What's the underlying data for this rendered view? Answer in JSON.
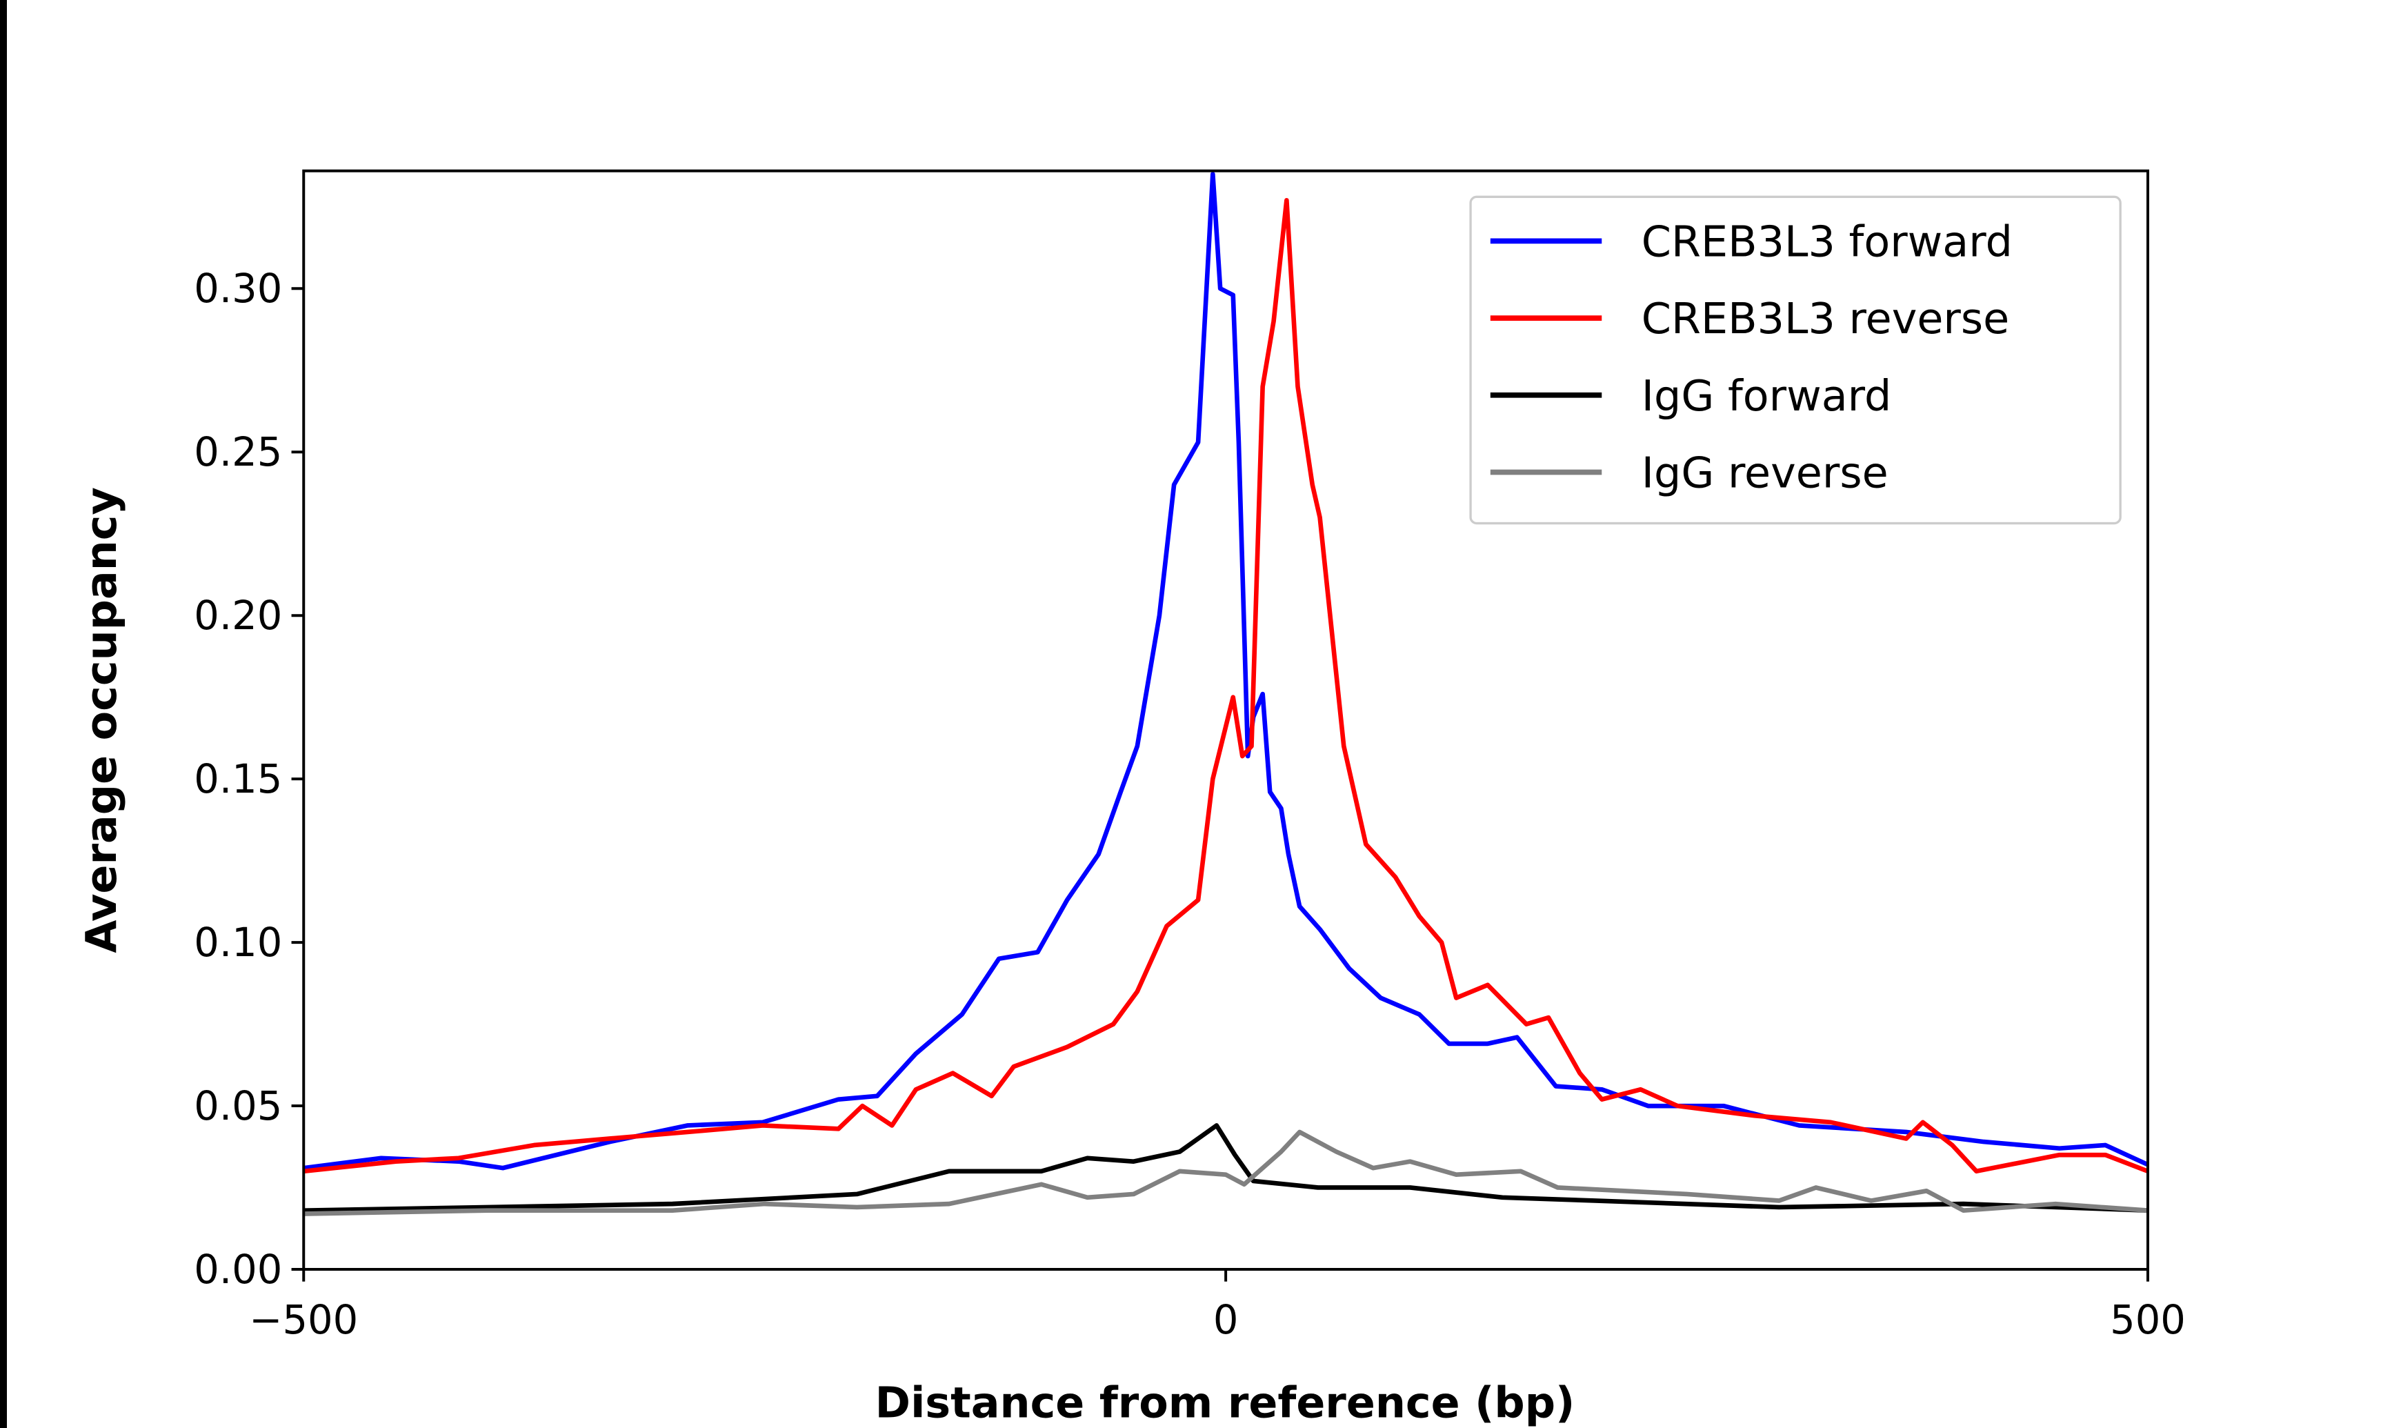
{
  "chart_data": {
    "type": "line",
    "title": "",
    "xlabel": "Distance from reference (bp)",
    "ylabel": "Average occupancy",
    "xlim": [
      -500,
      500
    ],
    "ylim": [
      0,
      0.336
    ],
    "xticks": [
      -500,
      0,
      500
    ],
    "xtick_labels": [
      "−500",
      "0",
      "500"
    ],
    "yticks": [
      0,
      0.05,
      0.1,
      0.15,
      0.2,
      0.25,
      0.3
    ],
    "ytick_labels": [
      "0.00",
      "0.05",
      "0.10",
      "0.15",
      "0.20",
      "0.25",
      "0.30"
    ],
    "grid": false,
    "legend_position": "top-right",
    "series": [
      {
        "name": "CREB3L3 forward",
        "color": "#0000ff",
        "x": [
          -500,
          -458,
          -416,
          -392,
          -334,
          -292,
          -251,
          -210,
          -189,
          -168,
          -143,
          -123,
          -102,
          -86,
          -69,
          -57,
          -48,
          -36,
          -28,
          -15,
          -7,
          -3,
          4,
          7,
          12,
          15,
          20,
          24,
          30,
          34,
          40,
          51,
          67,
          84,
          105,
          121,
          142,
          158,
          179,
          204,
          229,
          270,
          311,
          369,
          411,
          452,
          477,
          500
        ],
        "y": [
          0.031,
          0.034,
          0.033,
          0.031,
          0.039,
          0.044,
          0.045,
          0.052,
          0.053,
          0.066,
          0.078,
          0.095,
          0.097,
          0.113,
          0.127,
          0.146,
          0.16,
          0.2,
          0.24,
          0.253,
          0.335,
          0.3,
          0.298,
          0.253,
          0.157,
          0.169,
          0.176,
          0.146,
          0.141,
          0.127,
          0.111,
          0.104,
          0.092,
          0.083,
          0.078,
          0.069,
          0.069,
          0.071,
          0.056,
          0.055,
          0.05,
          0.05,
          0.044,
          0.042,
          0.039,
          0.037,
          0.038,
          0.032
        ]
      },
      {
        "name": "CREB3L3 reverse",
        "color": "#ff0000",
        "x": [
          -500,
          -450,
          -416,
          -375,
          -334,
          -292,
          -251,
          -210,
          -197,
          -181,
          -168,
          -148,
          -127,
          -115,
          -86,
          -61,
          -48,
          -32,
          -15,
          -7,
          4,
          9,
          14,
          20,
          26,
          33,
          39,
          47,
          51,
          64,
          76,
          92,
          105,
          117,
          125,
          142,
          163,
          175,
          192,
          204,
          225,
          245,
          287,
          328,
          369,
          378,
          394,
          407,
          452,
          477,
          500
        ],
        "y": [
          0.03,
          0.033,
          0.034,
          0.038,
          0.04,
          0.042,
          0.044,
          0.043,
          0.05,
          0.044,
          0.055,
          0.06,
          0.053,
          0.062,
          0.068,
          0.075,
          0.085,
          0.105,
          0.113,
          0.15,
          0.175,
          0.157,
          0.16,
          0.27,
          0.29,
          0.327,
          0.27,
          0.24,
          0.23,
          0.16,
          0.13,
          0.12,
          0.108,
          0.1,
          0.083,
          0.087,
          0.075,
          0.077,
          0.06,
          0.052,
          0.055,
          0.05,
          0.047,
          0.045,
          0.04,
          0.045,
          0.038,
          0.03,
          0.035,
          0.035,
          0.03
        ]
      },
      {
        "name": "IgG forward",
        "color": "#000000",
        "x": [
          -500,
          -400,
          -300,
          -200,
          -150,
          -100,
          -75,
          -50,
          -25,
          -5,
          5,
          15,
          50,
          100,
          150,
          200,
          300,
          400,
          500
        ],
        "y": [
          0.018,
          0.019,
          0.02,
          0.023,
          0.03,
          0.03,
          0.034,
          0.033,
          0.036,
          0.044,
          0.035,
          0.027,
          0.025,
          0.025,
          0.022,
          0.021,
          0.019,
          0.02,
          0.018
        ]
      },
      {
        "name": "IgG reverse",
        "color": "#808080",
        "x": [
          -500,
          -400,
          -300,
          -250,
          -200,
          -150,
          -100,
          -75,
          -50,
          -25,
          0,
          10,
          30,
          40,
          60,
          80,
          100,
          125,
          160,
          180,
          250,
          300,
          320,
          350,
          380,
          400,
          450,
          500
        ],
        "y": [
          0.017,
          0.018,
          0.018,
          0.02,
          0.019,
          0.02,
          0.026,
          0.022,
          0.023,
          0.03,
          0.029,
          0.026,
          0.036,
          0.042,
          0.036,
          0.031,
          0.033,
          0.029,
          0.03,
          0.025,
          0.023,
          0.021,
          0.025,
          0.021,
          0.024,
          0.018,
          0.02,
          0.018
        ]
      }
    ]
  }
}
